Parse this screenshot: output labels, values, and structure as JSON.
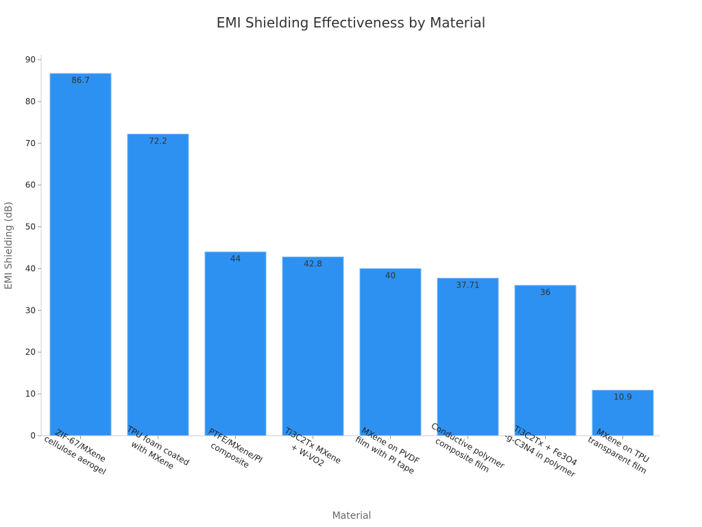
{
  "chart_data": {
    "type": "bar",
    "title": "EMI Shielding Effectiveness by Material",
    "xlabel": "Material",
    "ylabel": "EMI Shielding (dB)",
    "ylim": [
      0,
      90
    ],
    "yticks": [
      0,
      10,
      20,
      30,
      40,
      50,
      60,
      70,
      80,
      90
    ],
    "grid": false,
    "bar_color": "#2d91f2",
    "categories": [
      [
        "ZIF-67/MXene",
        "cellulose aerogel"
      ],
      [
        "TPU foam coated",
        "with MXene"
      ],
      [
        "PTFE/MXene/PI",
        "composite"
      ],
      [
        "Ti3C2Tx MXene",
        "+ W-VO2"
      ],
      [
        "MXene on PVDF",
        "film with PI tape"
      ],
      [
        "Conductive polymer",
        "composite film"
      ],
      [
        "Ti3C2Tx + Fe3O4",
        "-g-C3N4 in polymer"
      ],
      [
        "MXene on TPU",
        "transparent film"
      ]
    ],
    "values": [
      86.7,
      72.2,
      44,
      42.8,
      40,
      37.71,
      36,
      10.9
    ],
    "value_labels": [
      "86.7",
      "72.2",
      "44",
      "42.8",
      "40",
      "37.71",
      "36",
      "10.9"
    ]
  }
}
